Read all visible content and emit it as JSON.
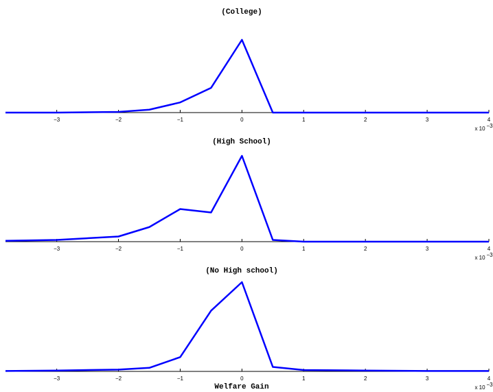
{
  "chart_data": [
    {
      "type": "line",
      "title": "(College)",
      "x": [
        -3.83,
        -3,
        -2,
        -1.5,
        -1,
        -0.5,
        0,
        0.5,
        1,
        2,
        3,
        4
      ],
      "series": [
        {
          "color": "#0000ff",
          "values": [
            0,
            0,
            0.01,
            0.04,
            0.14,
            0.34,
            1,
            0,
            0,
            0,
            0,
            0
          ]
        }
      ],
      "xlim": [
        -3.83,
        4
      ],
      "ylim": [
        0,
        1
      ],
      "xticks": [
        {
          "value": -3,
          "label": "−3"
        },
        {
          "value": -2,
          "label": "−2"
        },
        {
          "value": -1,
          "label": "−1"
        },
        0,
        1,
        2,
        3,
        4
      ],
      "x_multiplier": {
        "base": "x 10",
        "exponent": "−3"
      }
    },
    {
      "type": "line",
      "title": "(High School)",
      "x": [
        -3.83,
        -3,
        -2,
        -1.5,
        -1,
        -0.5,
        0,
        0.5,
        1,
        2,
        3,
        4
      ],
      "series": [
        {
          "color": "#0000ff",
          "values": [
            0.01,
            0.02,
            0.06,
            0.17,
            0.38,
            0.34,
            1,
            0.02,
            0,
            0,
            0,
            0
          ]
        }
      ],
      "xlim": [
        -3.83,
        4
      ],
      "ylim": [
        0,
        1
      ],
      "xticks": [
        {
          "value": -3,
          "label": "−3"
        },
        {
          "value": -2,
          "label": "−2"
        },
        {
          "value": -1,
          "label": "−1"
        },
        0,
        1,
        2,
        3,
        4
      ],
      "x_multiplier": {
        "base": "x 10",
        "exponent": "−3"
      }
    },
    {
      "type": "line",
      "title": "(No High school)",
      "xlabel": "Welfare Gain",
      "x": [
        -3.83,
        -3,
        -2,
        -1.5,
        -1,
        -0.5,
        0,
        0.5,
        1,
        2,
        3,
        4
      ],
      "series": [
        {
          "color": "#0000ff",
          "values": [
            0.005,
            0.01,
            0.02,
            0.04,
            0.16,
            0.68,
            1,
            0.05,
            0.015,
            0.01,
            0.005,
            0.005
          ]
        }
      ],
      "xlim": [
        -3.83,
        4
      ],
      "ylim": [
        0,
        1
      ],
      "xticks": [
        {
          "value": -3,
          "label": "−3"
        },
        {
          "value": -2,
          "label": "−2"
        },
        {
          "value": -1,
          "label": "−1"
        },
        0,
        1,
        2,
        3,
        4
      ],
      "x_multiplier": {
        "base": "x 10",
        "exponent": "−3"
      }
    }
  ]
}
